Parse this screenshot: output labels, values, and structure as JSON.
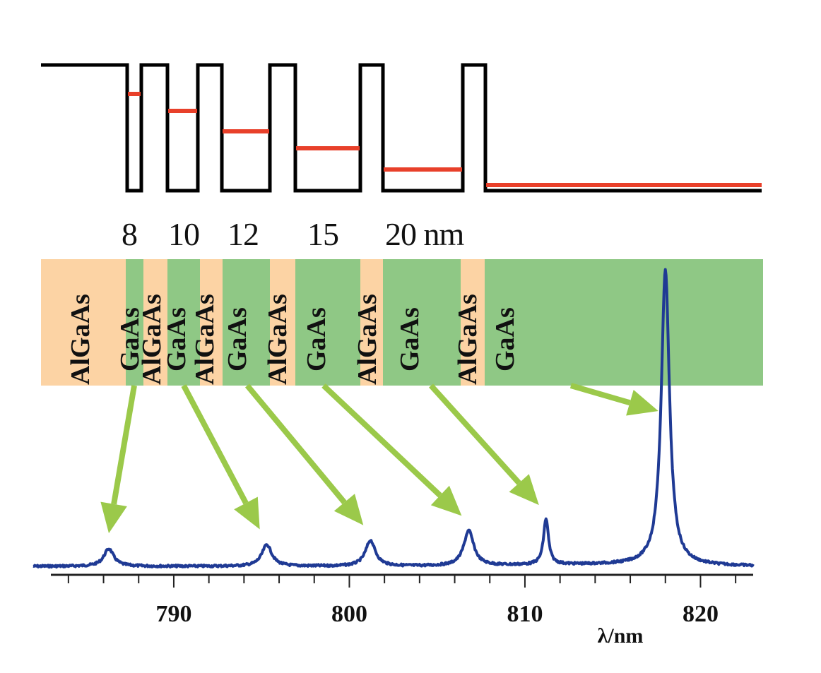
{
  "colors": {
    "barrier": "#fcd3a4",
    "well": "#8fc885",
    "band_edge": "#000000",
    "level": "#e8402a",
    "arrow": "#9bc94a",
    "spectrum": "#1f3a94"
  },
  "well_widths": {
    "labels": [
      "8",
      "10",
      "12",
      "15",
      "20 nm"
    ]
  },
  "layers": [
    {
      "material": "AlGaAs",
      "type": "barrier"
    },
    {
      "material": "GaAs",
      "type": "well"
    },
    {
      "material": "AlGaAs",
      "type": "barrier"
    },
    {
      "material": "GaAs",
      "type": "well"
    },
    {
      "material": "AlGaAs",
      "type": "barrier"
    },
    {
      "material": "GaAs",
      "type": "well"
    },
    {
      "material": "AlGaAs",
      "type": "barrier"
    },
    {
      "material": "GaAs",
      "type": "well"
    },
    {
      "material": "AlGaAs",
      "type": "barrier"
    },
    {
      "material": "GaAs",
      "type": "well"
    },
    {
      "material": "AlGaAs",
      "type": "barrier"
    },
    {
      "material": "GaAs",
      "type": "well"
    }
  ],
  "chart_data": {
    "type": "line",
    "xlabel": "λ/nm",
    "xlim": [
      783,
      823
    ],
    "x_ticks": [
      790,
      800,
      810,
      820
    ],
    "peaks": [
      {
        "x": 786.3,
        "height": 0.13
      },
      {
        "x": 795.3,
        "height": 0.16
      },
      {
        "x": 801.2,
        "height": 0.19
      },
      {
        "x": 806.8,
        "height": 0.26
      },
      {
        "x": 811.2,
        "height": 0.34
      },
      {
        "x": 818.0,
        "height": 2.2
      }
    ]
  }
}
